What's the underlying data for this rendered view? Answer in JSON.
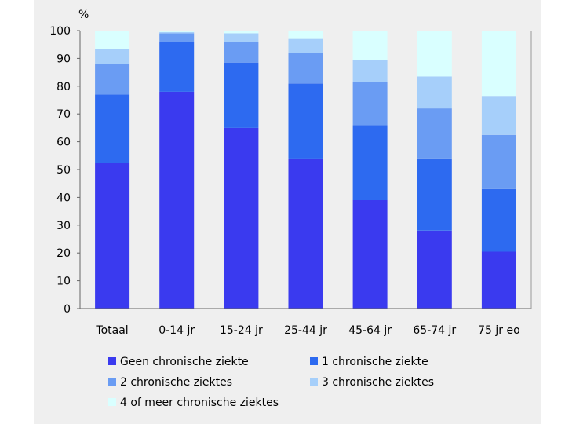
{
  "chart_data": {
    "type": "bar",
    "stacked": true,
    "unit_label": "%",
    "ylim": [
      0,
      100
    ],
    "yticks": [
      0,
      10,
      20,
      30,
      40,
      50,
      60,
      70,
      80,
      90,
      100
    ],
    "grid": false,
    "legend_position": "bottom",
    "categories": [
      "Totaal",
      "0-14 jr",
      "15-24 jr",
      "25-44 jr",
      "45-64 jr",
      "65-74 jr",
      "75 jr eo"
    ],
    "series": [
      {
        "name": "Geen chronische ziekte",
        "color": "#3a3aef",
        "values": [
          52.5,
          78,
          65,
          54,
          39,
          28,
          20.5
        ]
      },
      {
        "name": "1 chronische ziekte",
        "color": "#2d6af0",
        "values": [
          24.5,
          18,
          23.5,
          27,
          27,
          26,
          22.5
        ]
      },
      {
        "name": "2 chronische ziektes",
        "color": "#6a9cf3",
        "values": [
          11,
          3,
          7.5,
          11,
          15.5,
          18,
          19.5
        ]
      },
      {
        "name": "3 chronische ziektes",
        "color": "#a6cffa",
        "values": [
          5.5,
          0.5,
          3,
          5,
          8,
          11.5,
          14
        ]
      },
      {
        "name": "4 of meer chronische ziektes",
        "color": "#d9ffff",
        "values": [
          6.5,
          0.5,
          1,
          3,
          10.5,
          16.5,
          23.5
        ]
      }
    ]
  }
}
